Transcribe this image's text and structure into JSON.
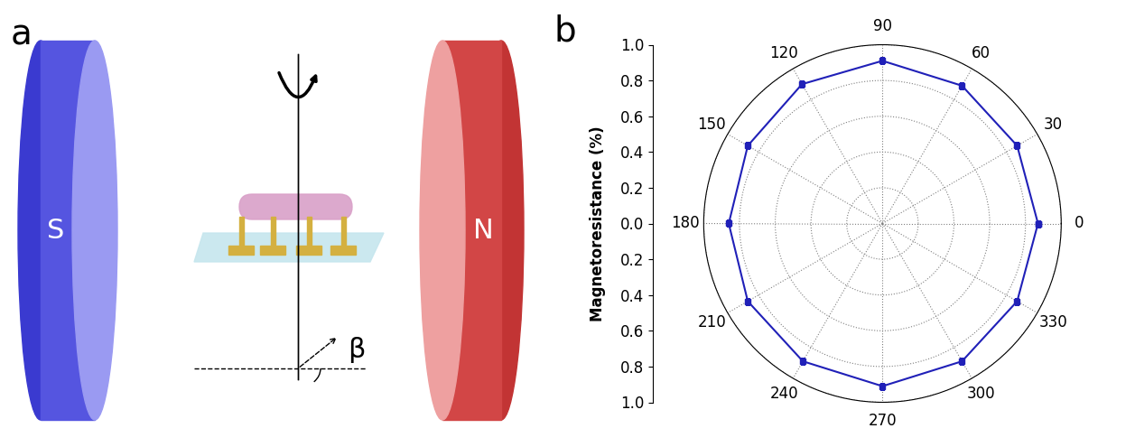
{
  "panel_labels": [
    "a",
    "b"
  ],
  "diagram": {
    "magnets": [
      "S",
      "N"
    ],
    "angle_label": "β"
  },
  "chart_data": {
    "type": "polar_line",
    "x": [
      0,
      30,
      60,
      90,
      120,
      150,
      180,
      210,
      240,
      270,
      300,
      330
    ],
    "values": [
      0.87,
      0.87,
      0.89,
      0.91,
      0.9,
      0.87,
      0.86,
      0.87,
      0.89,
      0.91,
      0.89,
      0.87
    ],
    "color": "#2020b8",
    "marker": "square",
    "line_style": "solid",
    "xlim": [
      0,
      360
    ],
    "xticks": [
      0,
      30,
      60,
      90,
      120,
      150,
      180,
      210,
      240,
      270,
      300,
      330
    ],
    "ylim": [
      0.0,
      1.0
    ],
    "yticks": [
      0.0,
      0.2,
      0.4,
      0.6,
      0.8,
      1.0
    ],
    "ylabel": "Magnetoresistance (%)",
    "grid": true
  }
}
